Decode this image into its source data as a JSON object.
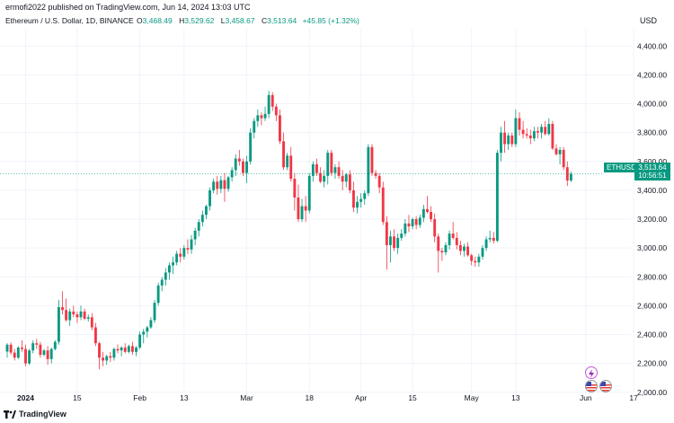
{
  "header": {
    "published": "ermofi2022 published on TradingView.com, Jun 14, 2024 13:03 UTC",
    "symbol": "Ethereum / U.S. Dollar, 1D, BINANCE",
    "o_label": "O",
    "o_value": "3,468.49",
    "h_label": "H",
    "h_value": "3,529.62",
    "l_label": "L",
    "l_value": "3,458.67",
    "c_label": "C",
    "c_value": "3,513.64",
    "change": "+45.85 (+1.32%)",
    "currency": "USD"
  },
  "price_tag": {
    "ticker": "ETHUSD",
    "price": "3,513.64",
    "countdown": "10:56:51"
  },
  "footer": {
    "brand": "TradingView"
  },
  "colors": {
    "up": "#089981",
    "down": "#f23645",
    "grid": "#f0f3fa",
    "axis_text": "#131722"
  },
  "chart_data": {
    "type": "candlestick",
    "title": "Ethereum / U.S. Dollar, 1D, BINANCE",
    "ylim": [
      1980,
      4520
    ],
    "y_ticks": [
      2000,
      2200,
      2400,
      2600,
      2800,
      3000,
      3200,
      3400,
      3600,
      3800,
      4000,
      4200,
      4400
    ],
    "y_tick_labels": [
      "2,000.00",
      "2,200.00",
      "2,400.00",
      "2,600.00",
      "2,800.00",
      "3,000.00",
      "3,200.00",
      "3,400.00",
      "3,600.00",
      "3,800.00",
      "4,000.00",
      "4,200.00",
      "4,400.00"
    ],
    "x_ticks": [
      {
        "index": 5,
        "label": "2024",
        "bold": true
      },
      {
        "index": 19,
        "label": "15",
        "bold": false
      },
      {
        "index": 36,
        "label": "Feb",
        "bold": false
      },
      {
        "index": 48,
        "label": "13",
        "bold": false
      },
      {
        "index": 65,
        "label": "Mar",
        "bold": false
      },
      {
        "index": 82,
        "label": "18",
        "bold": false
      },
      {
        "index": 96,
        "label": "Apr",
        "bold": false
      },
      {
        "index": 110,
        "label": "15",
        "bold": false
      },
      {
        "index": 126,
        "label": "May",
        "bold": false
      },
      {
        "index": 138,
        "label": "13",
        "bold": false
      },
      {
        "index": 157,
        "label": "Jun",
        "bold": false
      },
      {
        "index": 170,
        "label": "17",
        "bold": false
      }
    ],
    "last_price": 3513.64,
    "candles": [
      [
        2282,
        2340,
        2240,
        2330
      ],
      [
        2330,
        2345,
        2260,
        2275
      ],
      [
        2275,
        2300,
        2220,
        2240
      ],
      [
        2240,
        2320,
        2230,
        2310
      ],
      [
        2310,
        2360,
        2280,
        2300
      ],
      [
        2300,
        2330,
        2180,
        2200
      ],
      [
        2200,
        2300,
        2190,
        2290
      ],
      [
        2290,
        2360,
        2270,
        2340
      ],
      [
        2340,
        2370,
        2300,
        2330
      ],
      [
        2330,
        2350,
        2240,
        2260
      ],
      [
        2260,
        2300,
        2250,
        2290
      ],
      [
        2290,
        2320,
        2190,
        2230
      ],
      [
        2230,
        2310,
        2200,
        2300
      ],
      [
        2300,
        2360,
        2290,
        2350
      ],
      [
        2350,
        2640,
        2330,
        2590
      ],
      [
        2590,
        2700,
        2540,
        2570
      ],
      [
        2570,
        2650,
        2490,
        2500
      ],
      [
        2500,
        2580,
        2460,
        2560
      ],
      [
        2560,
        2600,
        2520,
        2540
      ],
      [
        2540,
        2560,
        2480,
        2520
      ],
      [
        2520,
        2600,
        2500,
        2560
      ],
      [
        2560,
        2580,
        2500,
        2510
      ],
      [
        2510,
        2540,
        2490,
        2520
      ],
      [
        2520,
        2550,
        2430,
        2450
      ],
      [
        2450,
        2480,
        2320,
        2340
      ],
      [
        2340,
        2350,
        2160,
        2240
      ],
      [
        2240,
        2280,
        2180,
        2220
      ],
      [
        2220,
        2260,
        2190,
        2250
      ],
      [
        2250,
        2280,
        2210,
        2240
      ],
      [
        2240,
        2310,
        2220,
        2300
      ],
      [
        2300,
        2330,
        2270,
        2290
      ],
      [
        2290,
        2320,
        2250,
        2310
      ],
      [
        2310,
        2340,
        2270,
        2280
      ],
      [
        2280,
        2330,
        2270,
        2320
      ],
      [
        2320,
        2350,
        2260,
        2280
      ],
      [
        2280,
        2320,
        2250,
        2310
      ],
      [
        2310,
        2420,
        2300,
        2400
      ],
      [
        2400,
        2440,
        2340,
        2420
      ],
      [
        2420,
        2460,
        2380,
        2450
      ],
      [
        2450,
        2520,
        2440,
        2500
      ],
      [
        2500,
        2640,
        2480,
        2620
      ],
      [
        2620,
        2760,
        2600,
        2740
      ],
      [
        2740,
        2800,
        2700,
        2780
      ],
      [
        2780,
        2860,
        2740,
        2830
      ],
      [
        2830,
        2900,
        2780,
        2880
      ],
      [
        2880,
        2940,
        2820,
        2900
      ],
      [
        2900,
        2980,
        2880,
        2960
      ],
      [
        2960,
        3000,
        2900,
        2940
      ],
      [
        2940,
        3020,
        2920,
        3000
      ],
      [
        3000,
        3060,
        2960,
        2990
      ],
      [
        2990,
        3090,
        2960,
        3060
      ],
      [
        3060,
        3140,
        3020,
        3120
      ],
      [
        3120,
        3200,
        3080,
        3180
      ],
      [
        3180,
        3260,
        3150,
        3230
      ],
      [
        3230,
        3300,
        3200,
        3290
      ],
      [
        3290,
        3420,
        3260,
        3400
      ],
      [
        3400,
        3480,
        3380,
        3460
      ],
      [
        3460,
        3500,
        3370,
        3410
      ],
      [
        3410,
        3500,
        3380,
        3470
      ],
      [
        3470,
        3520,
        3320,
        3410
      ],
      [
        3410,
        3500,
        3390,
        3490
      ],
      [
        3490,
        3560,
        3460,
        3540
      ],
      [
        3540,
        3650,
        3500,
        3620
      ],
      [
        3620,
        3680,
        3570,
        3600
      ],
      [
        3600,
        3620,
        3500,
        3520
      ],
      [
        3520,
        3640,
        3450,
        3600
      ],
      [
        3600,
        3830,
        3580,
        3800
      ],
      [
        3800,
        3900,
        3760,
        3880
      ],
      [
        3880,
        3960,
        3840,
        3920
      ],
      [
        3920,
        3940,
        3850,
        3900
      ],
      [
        3900,
        3980,
        3880,
        3930
      ],
      [
        3930,
        4090,
        3900,
        4060
      ],
      [
        4060,
        4080,
        3950,
        3980
      ],
      [
        3980,
        4000,
        3880,
        3920
      ],
      [
        3920,
        3960,
        3720,
        3740
      ],
      [
        3740,
        3800,
        3540,
        3560
      ],
      [
        3560,
        3660,
        3540,
        3640
      ],
      [
        3640,
        3700,
        3460,
        3480
      ],
      [
        3480,
        3520,
        3260,
        3350
      ],
      [
        3350,
        3440,
        3180,
        3200
      ],
      [
        3200,
        3340,
        3180,
        3290
      ],
      [
        3290,
        3360,
        3180,
        3260
      ],
      [
        3260,
        3520,
        3240,
        3500
      ],
      [
        3500,
        3600,
        3460,
        3580
      ],
      [
        3580,
        3620,
        3500,
        3520
      ],
      [
        3520,
        3560,
        3450,
        3460
      ],
      [
        3460,
        3540,
        3420,
        3500
      ],
      [
        3500,
        3680,
        3440,
        3660
      ],
      [
        3660,
        3680,
        3500,
        3520
      ],
      [
        3520,
        3580,
        3480,
        3560
      ],
      [
        3560,
        3600,
        3480,
        3500
      ],
      [
        3500,
        3540,
        3400,
        3460
      ],
      [
        3460,
        3520,
        3420,
        3510
      ],
      [
        3510,
        3540,
        3380,
        3400
      ],
      [
        3400,
        3460,
        3250,
        3280
      ],
      [
        3280,
        3360,
        3240,
        3320
      ],
      [
        3320,
        3380,
        3280,
        3340
      ],
      [
        3340,
        3400,
        3300,
        3380
      ],
      [
        3380,
        3720,
        3360,
        3700
      ],
      [
        3700,
        3720,
        3500,
        3520
      ],
      [
        3520,
        3540,
        3480,
        3500
      ],
      [
        3500,
        3520,
        3380,
        3420
      ],
      [
        3420,
        3460,
        3160,
        3180
      ],
      [
        3180,
        3220,
        2850,
        3020
      ],
      [
        3020,
        3120,
        2900,
        3080
      ],
      [
        3080,
        3130,
        2980,
        3000
      ],
      [
        3000,
        3100,
        2960,
        3070
      ],
      [
        3070,
        3130,
        3050,
        3100
      ],
      [
        3100,
        3200,
        3080,
        3170
      ],
      [
        3170,
        3230,
        3110,
        3150
      ],
      [
        3150,
        3210,
        3130,
        3200
      ],
      [
        3200,
        3220,
        3130,
        3160
      ],
      [
        3160,
        3230,
        3140,
        3210
      ],
      [
        3210,
        3300,
        3180,
        3270
      ],
      [
        3270,
        3360,
        3240,
        3250
      ],
      [
        3250,
        3290,
        3180,
        3200
      ],
      [
        3200,
        3240,
        3040,
        3080
      ],
      [
        3080,
        3100,
        2830,
        2980
      ],
      [
        2980,
        3000,
        2910,
        2970
      ],
      [
        2970,
        3040,
        2950,
        3020
      ],
      [
        3020,
        3120,
        2990,
        3100
      ],
      [
        3100,
        3180,
        3060,
        3070
      ],
      [
        3070,
        3110,
        2990,
        3020
      ],
      [
        3020,
        3050,
        2950,
        2980
      ],
      [
        2980,
        3030,
        2940,
        3010
      ],
      [
        3010,
        3040,
        2940,
        2950
      ],
      [
        2950,
        2960,
        2880,
        2910
      ],
      [
        2910,
        2940,
        2870,
        2900
      ],
      [
        2900,
        2960,
        2870,
        2940
      ],
      [
        2940,
        3020,
        2920,
        3000
      ],
      [
        3000,
        3080,
        2980,
        3060
      ],
      [
        3060,
        3120,
        3040,
        3070
      ],
      [
        3070,
        3110,
        3030,
        3050
      ],
      [
        3050,
        3680,
        3040,
        3660
      ],
      [
        3660,
        3840,
        3600,
        3800
      ],
      [
        3800,
        3880,
        3660,
        3720
      ],
      [
        3720,
        3800,
        3680,
        3780
      ],
      [
        3780,
        3800,
        3700,
        3720
      ],
      [
        3720,
        3960,
        3700,
        3900
      ],
      [
        3900,
        3940,
        3780,
        3820
      ],
      [
        3820,
        3880,
        3760,
        3790
      ],
      [
        3790,
        3830,
        3760,
        3780
      ],
      [
        3780,
        3820,
        3720,
        3760
      ],
      [
        3760,
        3840,
        3740,
        3810
      ],
      [
        3810,
        3840,
        3760,
        3800
      ],
      [
        3800,
        3860,
        3760,
        3840
      ],
      [
        3840,
        3880,
        3780,
        3790
      ],
      [
        3790,
        3900,
        3780,
        3860
      ],
      [
        3860,
        3880,
        3680,
        3690
      ],
      [
        3690,
        3720,
        3640,
        3650
      ],
      [
        3650,
        3700,
        3580,
        3680
      ],
      [
        3680,
        3700,
        3540,
        3560
      ],
      [
        3560,
        3600,
        3430,
        3468
      ],
      [
        3468,
        3530,
        3458,
        3513.64
      ]
    ]
  }
}
